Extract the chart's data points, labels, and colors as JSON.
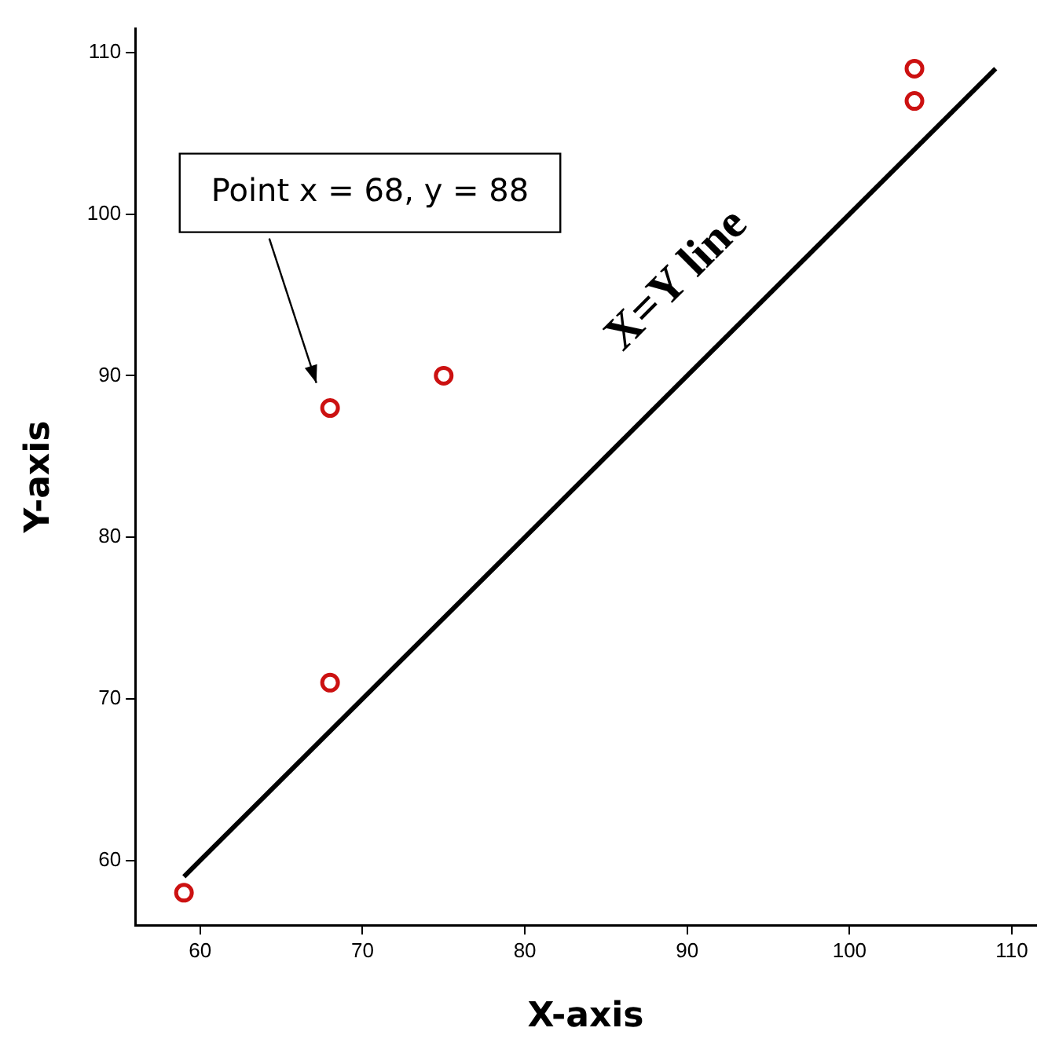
{
  "chart_data": {
    "type": "scatter",
    "xlabel": "X-axis",
    "ylabel": "Y-axis",
    "xlim": [
      56,
      111.5
    ],
    "ylim": [
      56,
      111.5
    ],
    "xticks": [
      60,
      70,
      80,
      90,
      100,
      110
    ],
    "yticks": [
      60,
      70,
      80,
      90,
      100,
      110
    ],
    "grid": false,
    "legend": false,
    "marker": "circle",
    "series": [
      {
        "color": "#cc1111",
        "x": [
          59,
          68,
          68,
          75,
          104,
          104
        ],
        "values": [
          58,
          71,
          88,
          90,
          109,
          107
        ]
      },
      {
        "type": "line",
        "color": "#000000",
        "marker": "none",
        "line_style": "solid",
        "x": [
          59,
          109
        ],
        "values": [
          59,
          109
        ]
      }
    ],
    "annotations": [
      "Point x = 68, y = 88",
      "X=Y line"
    ]
  }
}
